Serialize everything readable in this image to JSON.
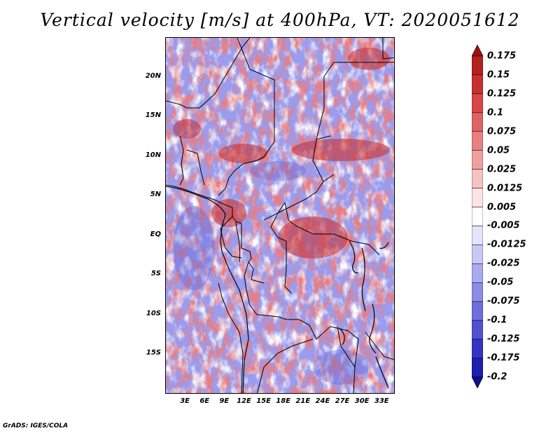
{
  "title": "Vertical velocity [m/s] at 400hPa, VT: 2020051612",
  "credit": "GrADS: IGES/COLA",
  "map": {
    "lon_range": [
      0,
      35
    ],
    "lat_range": [
      -20,
      25
    ],
    "lat_labels": [
      {
        "label": "20N",
        "lat": 20
      },
      {
        "label": "15N",
        "lat": 15
      },
      {
        "label": "10N",
        "lat": 10
      },
      {
        "label": "5N",
        "lat": 5
      },
      {
        "label": "EQ",
        "lat": 0
      },
      {
        "label": "5S",
        "lat": -5
      },
      {
        "label": "10S",
        "lat": -10
      },
      {
        "label": "15S",
        "lat": -15
      }
    ],
    "lon_labels": [
      {
        "label": "3E",
        "lon": 3
      },
      {
        "label": "6E",
        "lon": 6
      },
      {
        "label": "9E",
        "lon": 9
      },
      {
        "label": "12E",
        "lon": 12
      },
      {
        "label": "15E",
        "lon": 15
      },
      {
        "label": "18E",
        "lon": 18
      },
      {
        "label": "21E",
        "lon": 21
      },
      {
        "label": "24E",
        "lon": 24
      },
      {
        "label": "27E",
        "lon": 27
      },
      {
        "label": "30E",
        "lon": 30
      },
      {
        "label": "33E",
        "lon": 33
      }
    ]
  },
  "colorbar": {
    "labels": [
      "0.175",
      "0.15",
      "0.125",
      "0.1",
      "0.075",
      "0.05",
      "0.025",
      "0.0125",
      "0.005",
      "-0.005",
      "-0.0125",
      "-0.025",
      "-0.05",
      "-0.075",
      "-0.1",
      "-0.125",
      "-0.175",
      "-0.2"
    ],
    "colors": [
      "#a01010",
      "#b52020",
      "#c83030",
      "#d84646",
      "#e06262",
      "#e88080",
      "#f0a0a0",
      "#f6c2c2",
      "#fce4e4",
      "#ffffff",
      "#e4e4fc",
      "#c8c8f6",
      "#aaaaf0",
      "#8c8ce6",
      "#6e6ede",
      "#5050d2",
      "#3434c4",
      "#1e1eb0",
      "#10108c"
    ]
  }
}
